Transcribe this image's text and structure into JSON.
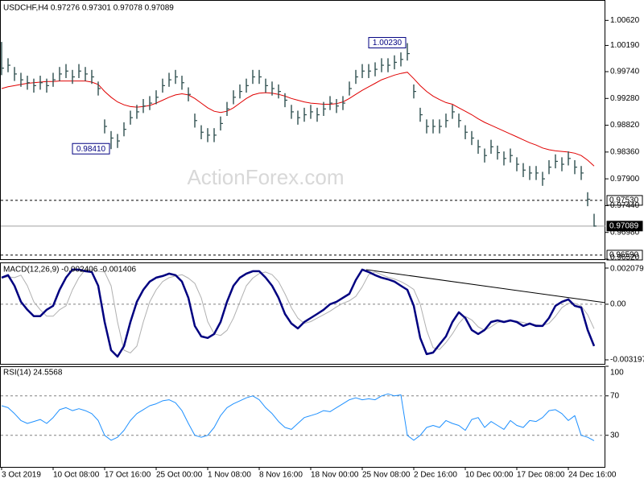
{
  "chart_data": [
    {
      "type": "ohlc",
      "title": "USDCHF,H4  0.97276 0.97301 0.97078 0.97089",
      "watermark": "ActionForex.com",
      "color": "#2f4f4f",
      "high": [
        1.0025,
        0.9997,
        0.9982,
        0.9972,
        0.9967,
        0.9962,
        0.9967,
        0.9962,
        0.9972,
        0.9982,
        0.9987,
        0.9977,
        0.9987,
        0.9982,
        0.9977,
        0.9957,
        0.9892,
        0.9872,
        0.9867,
        0.9887,
        0.9907,
        0.9917,
        0.9927,
        0.9932,
        0.9942,
        0.9962,
        0.9972,
        0.9977,
        0.9967,
        0.9947,
        0.9902,
        0.9882,
        0.9877,
        0.9877,
        0.9897,
        0.9922,
        0.9942,
        0.9952,
        0.9962,
        0.9977,
        0.9977,
        0.9962,
        0.9957,
        0.9952,
        0.9937,
        0.9917,
        0.9907,
        0.9912,
        0.9917,
        0.9912,
        0.9922,
        0.9932,
        0.9927,
        0.9932,
        0.9957,
        0.9977,
        0.9987,
        0.9987,
        0.999,
        0.9997,
        0.9997,
        1.0002,
        1.0007,
        1.0023,
        0.9952,
        0.9912,
        0.9892,
        0.9892,
        0.9892,
        0.9902,
        0.9917,
        0.9902,
        0.9882,
        0.9872,
        0.9857,
        0.9842,
        0.9857,
        0.9847,
        0.9837,
        0.9842,
        0.9827,
        0.9817,
        0.9812,
        0.9812,
        0.9802,
        0.9822,
        0.9832,
        0.9827,
        0.9837,
        0.9822,
        0.9812,
        0.9767,
        0.973
      ],
      "low": [
        0.9968,
        0.9973,
        0.9958,
        0.9948,
        0.9943,
        0.9938,
        0.9943,
        0.9938,
        0.9948,
        0.9958,
        0.9963,
        0.9953,
        0.9963,
        0.9958,
        0.9953,
        0.9933,
        0.9868,
        0.9841,
        0.9843,
        0.9863,
        0.9883,
        0.9893,
        0.9903,
        0.9908,
        0.9918,
        0.9938,
        0.9948,
        0.9953,
        0.9943,
        0.9923,
        0.9878,
        0.9858,
        0.9853,
        0.9853,
        0.9873,
        0.9898,
        0.9918,
        0.9928,
        0.9938,
        0.9953,
        0.9953,
        0.9938,
        0.9933,
        0.9928,
        0.9913,
        0.9893,
        0.9883,
        0.9888,
        0.9893,
        0.9888,
        0.9898,
        0.9908,
        0.9903,
        0.9908,
        0.9933,
        0.9953,
        0.9963,
        0.9963,
        0.9966,
        0.9973,
        0.9973,
        0.9978,
        0.9983,
        0.9993,
        0.9928,
        0.9888,
        0.9868,
        0.9868,
        0.9868,
        0.9878,
        0.9893,
        0.9878,
        0.9858,
        0.9848,
        0.9833,
        0.9818,
        0.9833,
        0.9823,
        0.9813,
        0.9818,
        0.9803,
        0.9793,
        0.9788,
        0.9788,
        0.9778,
        0.9798,
        0.9808,
        0.9803,
        0.9813,
        0.9798,
        0.9788,
        0.9743,
        0.97078
      ],
      "close": [
        0.998,
        0.9985,
        0.997,
        0.996,
        0.9955,
        0.995,
        0.9955,
        0.995,
        0.996,
        0.997,
        0.9975,
        0.9965,
        0.9975,
        0.997,
        0.9965,
        0.9945,
        0.988,
        0.986,
        0.9855,
        0.9875,
        0.9895,
        0.9905,
        0.9915,
        0.992,
        0.993,
        0.995,
        0.996,
        0.9965,
        0.9955,
        0.9935,
        0.989,
        0.987,
        0.9865,
        0.9865,
        0.9885,
        0.991,
        0.993,
        0.994,
        0.995,
        0.9965,
        0.9965,
        0.995,
        0.9945,
        0.994,
        0.9925,
        0.9905,
        0.9895,
        0.99,
        0.9905,
        0.99,
        0.991,
        0.992,
        0.9915,
        0.992,
        0.9945,
        0.9965,
        0.9975,
        0.9975,
        0.9978,
        0.9985,
        0.9985,
        0.999,
        0.9995,
        1.0005,
        0.994,
        0.99,
        0.988,
        0.988,
        0.988,
        0.989,
        0.9905,
        0.989,
        0.987,
        0.986,
        0.9845,
        0.983,
        0.9845,
        0.9835,
        0.9825,
        0.983,
        0.9815,
        0.9805,
        0.98,
        0.98,
        0.979,
        0.981,
        0.982,
        0.9815,
        0.9825,
        0.981,
        0.98,
        0.9755,
        0.97089
      ],
      "overlays": [
        {
          "color": "#e00000",
          "values": [
            0.9945,
            0.9948,
            0.995,
            0.9952,
            0.9954,
            0.9955,
            0.9956,
            0.9957,
            0.9957,
            0.9958,
            0.9958,
            0.9958,
            0.9958,
            0.9958,
            0.9956,
            0.9952,
            0.994,
            0.993,
            0.9922,
            0.9917,
            0.9914,
            0.9913,
            0.9914,
            0.9916,
            0.992,
            0.9925,
            0.993,
            0.9934,
            0.9936,
            0.9934,
            0.9928,
            0.992,
            0.9912,
            0.9906,
            0.9904,
            0.9906,
            0.9912,
            0.992,
            0.9928,
            0.9934,
            0.9937,
            0.9938,
            0.9937,
            0.9935,
            0.9932,
            0.9928,
            0.9925,
            0.9922,
            0.992,
            0.9919,
            0.9918,
            0.9918,
            0.9919,
            0.9922,
            0.9928,
            0.9935,
            0.9942,
            0.9948,
            0.9954,
            0.996,
            0.9964,
            0.9968,
            0.9971,
            0.9973,
            0.9962,
            0.995,
            0.994,
            0.9932,
            0.9926,
            0.9921,
            0.9918,
            0.9912,
            0.9906,
            0.99,
            0.9893,
            0.9887,
            0.9882,
            0.9877,
            0.9872,
            0.9867,
            0.9862,
            0.9857,
            0.9852,
            0.9848,
            0.9843,
            0.984,
            0.9838,
            0.9837,
            0.9836,
            0.9834,
            0.983,
            0.9822,
            0.9812
          ]
        }
      ],
      "ylim": [
        0.9652,
        1.0097
      ],
      "yticks": [
        {
          "value": 1.0062,
          "label": "1.00620"
        },
        {
          "value": 1.0019,
          "label": "1.00190"
        },
        {
          "value": 0.9974,
          "label": "0.99740"
        },
        {
          "value": 0.9928,
          "label": "0.99280"
        },
        {
          "value": 0.9882,
          "label": "0.98820"
        },
        {
          "value": 0.9836,
          "label": "0.98360"
        },
        {
          "value": 0.979,
          "label": "0.97900"
        },
        {
          "value": 0.9744,
          "label": "0.97440"
        },
        {
          "value": 0.9698,
          "label": "0.96980"
        },
        {
          "value": 0.9652,
          "label": "0.96520"
        }
      ],
      "levels": [
        {
          "value": 0.9753,
          "label": "0.97530",
          "style": "dashed"
        },
        {
          "value": 0.9659,
          "label": "0.96590",
          "style": "dashed"
        },
        {
          "value": 0.97089,
          "label": "0.97089",
          "style": "current"
        }
      ],
      "annotations": [
        {
          "value": 1.0023,
          "label": "1.00230",
          "anchor": "high"
        },
        {
          "value": 0.9841,
          "label": "0.98410",
          "anchor": "low"
        }
      ]
    },
    {
      "type": "line",
      "title": "MACD(12,26,9) -0.002406 -0.001406",
      "series": [
        {
          "color": "#000080",
          "width": 2.5,
          "values": [
            0.00153,
            0.00167,
            0.00106,
            0.00014,
            -0.00032,
            -0.00069,
            -0.00069,
            -0.00032,
            -9e-05,
            0.00083,
            0.00153,
            0.00199,
            0.00199,
            0.0019,
            0.00185,
            0.00106,
            -0.00102,
            -0.00264,
            -0.00301,
            -0.00241,
            -0.00102,
            0.00014,
            0.00083,
            0.0013,
            0.00153,
            0.00162,
            0.00176,
            0.00167,
            0.0013,
            0.00037,
            -0.00125,
            -0.00185,
            -0.00194,
            -0.00171,
            -0.00102,
            0.00014,
            0.00106,
            0.00153,
            0.00176,
            0.0019,
            0.0019,
            0.00153,
            0.00106,
            0.00037,
            -0.00056,
            -0.00111,
            -0.00139,
            -0.00102,
            -0.00079,
            -0.00056,
            -0.00032,
            0,
            0.00014,
            0.00037,
            0.0006,
            0.00139,
            0.00199,
            0.00185,
            0.00167,
            0.00153,
            0.00143,
            0.0013,
            0.00106,
            0.00083,
            -9e-05,
            -0.00194,
            -0.00287,
            -0.00278,
            -0.00231,
            -0.00185,
            -0.00102,
            -0.00046,
            -0.00079,
            -0.00148,
            -0.00171,
            -0.00148,
            -0.00102,
            -0.00093,
            -0.00102,
            -0.00093,
            -0.00102,
            -0.00125,
            -0.00111,
            -0.00125,
            -0.00125,
            -0.00079,
            -9e-05,
            0.00014,
            0.00028,
            -9e-05,
            -0.00019,
            -0.00148,
            -0.002406
          ]
        },
        {
          "color": "#b0b0b0",
          "width": 1,
          "values": [
            0.0015,
            0.00158,
            0.00153,
            0.00167,
            0.00106,
            0.00014,
            -0.00032,
            -0.00069,
            -0.00069,
            -0.00032,
            -9e-05,
            0.00083,
            0.00153,
            0.00199,
            0.00199,
            0.0019,
            0.00185,
            0.00106,
            -0.00102,
            -0.00264,
            -0.0028,
            -0.00241,
            -0.00102,
            0.00014,
            0.00083,
            0.0013,
            0.00153,
            0.00162,
            0.0017,
            0.0015,
            0.0012,
            0.00037,
            -0.001,
            -0.0017,
            -0.0018,
            -0.0015,
            -0.0008,
            0.00014,
            0.00106,
            0.0015,
            0.00176,
            0.00185,
            0.0017,
            0.0013,
            0.0006,
            -0.0002,
            -0.0008,
            -0.0011,
            -0.001,
            -0.0008,
            -0.0006,
            -0.0004,
            -0.00015,
            5e-05,
            0.0002,
            0.00045,
            0.001,
            0.0017,
            0.00185,
            0.0017,
            0.00155,
            0.00145,
            0.0013,
            0.0011,
            0.00085,
            0,
            -0.0015,
            -0.0025,
            -0.0026,
            -0.0022,
            -0.0017,
            -0.0011,
            -0.0007,
            -0.0009,
            -0.0013,
            -0.0015,
            -0.0013,
            -0.00105,
            -0.00098,
            -0.00098,
            -0.00098,
            -0.00105,
            -0.00115,
            -0.00118,
            -0.00122,
            -0.0011,
            -0.0007,
            -0.0002,
            5e-05,
            5e-05,
            -0.0001,
            -0.0006,
            -0.001406
          ]
        }
      ],
      "ylim": [
        -0.003197,
        0.002079
      ],
      "yticks": [
        0.002079,
        {
          "value": 0,
          "label": "0.00"
        },
        -0.003197
      ],
      "grid": "dashed"
    },
    {
      "type": "line",
      "title": "RSI(14) 24.5568",
      "series": [
        {
          "color": "#1e90ff",
          "width": 1,
          "values": [
            60,
            58,
            52,
            45,
            42,
            44,
            46,
            42,
            48,
            56,
            58,
            55,
            57,
            55,
            52,
            45,
            30,
            25,
            28,
            35,
            45,
            52,
            56,
            60,
            62,
            65,
            66,
            63,
            55,
            42,
            30,
            28,
            30,
            38,
            50,
            58,
            62,
            65,
            68,
            70,
            66,
            58,
            52,
            44,
            38,
            36,
            42,
            48,
            50,
            52,
            55,
            54,
            58,
            62,
            66,
            68,
            66,
            67,
            66,
            70,
            72,
            70,
            71,
            30,
            25,
            30,
            38,
            40,
            38,
            45,
            42,
            40,
            35,
            46,
            48,
            38,
            44,
            40,
            36,
            45,
            40,
            38,
            45,
            44,
            48,
            55,
            56,
            52,
            45,
            50,
            30,
            28,
            24.5568
          ]
        }
      ],
      "ylim": [
        0,
        100
      ],
      "yticks": [
        100,
        70,
        30
      ],
      "grid": "dashed",
      "categories": [
        "3 Oct 2019",
        null,
        null,
        null,
        null,
        null,
        null,
        null,
        "10 Oct 08:00",
        null,
        null,
        null,
        null,
        null,
        null,
        null,
        "17 Oct 16:00",
        null,
        null,
        null,
        null,
        null,
        null,
        null,
        "25 Oct 00:00",
        null,
        null,
        null,
        null,
        null,
        null,
        null,
        "1 Nov 08:00",
        null,
        null,
        null,
        null,
        null,
        null,
        null,
        "8 Nov 16:00",
        null,
        null,
        null,
        null,
        null,
        null,
        null,
        "18 Nov 00:00",
        null,
        null,
        null,
        null,
        null,
        null,
        null,
        "25 Nov 08:00",
        null,
        null,
        null,
        null,
        null,
        null,
        null,
        "2 Dec 16:00",
        null,
        null,
        null,
        null,
        null,
        null,
        null,
        "10 Dec 00:00",
        null,
        null,
        null,
        null,
        null,
        null,
        null,
        "17 Dec 08:00",
        null,
        null,
        null,
        null,
        null,
        null,
        null,
        "24 Dec 16:00",
        null,
        null,
        null,
        null
      ]
    }
  ]
}
